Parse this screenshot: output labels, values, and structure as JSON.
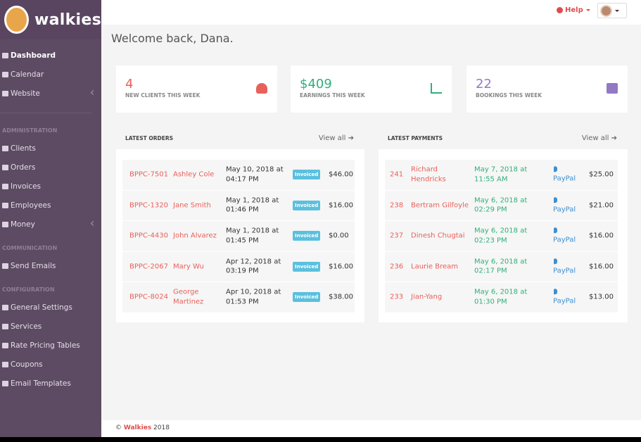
{
  "sidebar": {
    "brand": "walkies",
    "nav": [
      "Dashboard",
      "Calendar",
      "Website"
    ],
    "sections": [
      {
        "title": "ADMINISTRATION",
        "items": [
          "Clients",
          "Orders",
          "Invoices",
          "Employees",
          "Money"
        ]
      },
      {
        "title": "COMMUNICATION",
        "items": [
          "Send Emails"
        ]
      },
      {
        "title": "CONFIGURATION",
        "items": [
          "General Settings",
          "Services",
          "Rate Pricing Tables",
          "Coupons",
          "Email Templates"
        ]
      }
    ]
  },
  "topbar": {
    "help": "Help"
  },
  "welcome": "Welcome back, Dana.",
  "stats": [
    {
      "value": "4",
      "label": "NEW CLIENTS THIS WEEK"
    },
    {
      "value": "$409",
      "label": "EARNINGS THIS WEEK"
    },
    {
      "value": "22",
      "label": "BOOKINGS THIS WEEK"
    }
  ],
  "orders": {
    "title": "LATEST ORDERS",
    "view_all": "View all ➔",
    "rows": [
      [
        "BPPC-7501",
        "Ashley Cole",
        "May 10, 2018 at 04:17 PM",
        "Invoiced",
        "$46.00"
      ],
      [
        "BPPC-1320",
        "Jane Smith",
        "May 1, 2018 at 01:46 PM",
        "Invoiced",
        "$16.00"
      ],
      [
        "BPPC-4430",
        "John Alvarez",
        "May 1, 2018 at 01:45 PM",
        "Invoiced",
        "$0.00"
      ],
      [
        "BPPC-2067",
        "Mary Wu",
        "Apr 12, 2018 at 03:19 PM",
        "Invoiced",
        "$16.00"
      ],
      [
        "BPPC-8024",
        "George Martinez",
        "Apr 10, 2018 at 01:53 PM",
        "Invoiced",
        "$38.00"
      ]
    ]
  },
  "payments": {
    "title": "LATEST PAYMENTS",
    "view_all": "View all ➔",
    "rows": [
      [
        "241",
        "Richard Hendricks",
        "May 7, 2018 at 11:55 AM",
        "PayPal",
        "$25.00"
      ],
      [
        "238",
        "Bertram Gilfoyle",
        "May 6, 2018 at 02:29 PM",
        "PayPal",
        "$21.00"
      ],
      [
        "237",
        "Dinesh Chugtai",
        "May 6, 2018 at 02:23 PM",
        "PayPal",
        "$16.00"
      ],
      [
        "236",
        "Laurie Bream",
        "May 6, 2018 at 02:17 PM",
        "PayPal",
        "$16.00"
      ],
      [
        "233",
        "Jian-Yang",
        "May 6, 2018 at 01:30 PM",
        "PayPal",
        "$13.00"
      ]
    ]
  },
  "footer": {
    "symbol": "©",
    "brand": "Walkies",
    "year": "2018"
  }
}
